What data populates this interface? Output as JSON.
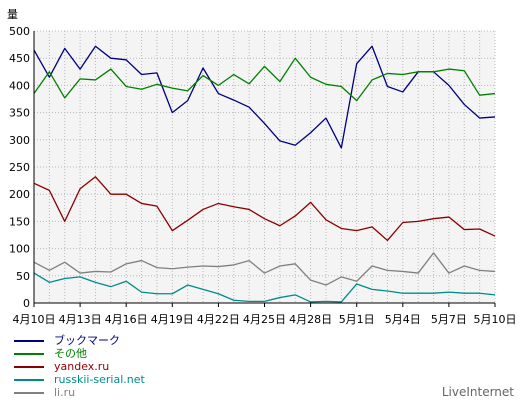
{
  "chart_data": {
    "type": "line",
    "ylabel": "量",
    "ylim": [
      0,
      500
    ],
    "yticks": [
      0,
      50,
      100,
      150,
      200,
      250,
      300,
      350,
      400,
      450,
      500
    ],
    "grid": true,
    "legend_position": "bottom-left",
    "x_tick_labels": [
      "4月10日",
      "4月13日",
      "4月16日",
      "4月19日",
      "4月22日",
      "4月25日",
      "4月28日",
      "5月1日",
      "5月4日",
      "5月7日",
      "5月10日"
    ],
    "x_tick_every": 3,
    "series": [
      {
        "name": "ブックマーク",
        "color": "#000080",
        "values": [
          465,
          415,
          468,
          430,
          472,
          450,
          447,
          420,
          423,
          350,
          372,
          432,
          385,
          373,
          360,
          330,
          298,
          290,
          313,
          340,
          285,
          440,
          472,
          398,
          388,
          425,
          425,
          400,
          365,
          340,
          342
        ]
      },
      {
        "name": "その他",
        "color": "#008000",
        "values": [
          385,
          425,
          377,
          412,
          410,
          430,
          398,
          393,
          402,
          395,
          390,
          418,
          400,
          420,
          403,
          435,
          407,
          450,
          415,
          402,
          398,
          372,
          410,
          422,
          420,
          425,
          425,
          430,
          427,
          382,
          385
        ]
      },
      {
        "name": "yandex.ru",
        "color": "#8b0000",
        "values": [
          220,
          207,
          150,
          210,
          232,
          200,
          200,
          183,
          178,
          133,
          152,
          172,
          183,
          177,
          172,
          155,
          142,
          160,
          185,
          153,
          137,
          133,
          140,
          115,
          148,
          150,
          155,
          158,
          135,
          136,
          123
        ]
      },
      {
        "name": "russkii-serial.net",
        "color": "#008b8b",
        "values": [
          55,
          38,
          45,
          48,
          38,
          30,
          40,
          20,
          17,
          17,
          33,
          25,
          17,
          5,
          3,
          3,
          10,
          15,
          2,
          3,
          2,
          35,
          25,
          22,
          18,
          18,
          18,
          20,
          18,
          18,
          15
        ]
      },
      {
        "name": "li.ru",
        "color": "#808080",
        "values": [
          75,
          60,
          75,
          55,
          58,
          57,
          72,
          78,
          65,
          63,
          66,
          68,
          67,
          70,
          78,
          55,
          68,
          72,
          42,
          33,
          48,
          40,
          68,
          60,
          58,
          55,
          92,
          55,
          68,
          60,
          58
        ]
      }
    ]
  },
  "brand": "LiveInternet"
}
